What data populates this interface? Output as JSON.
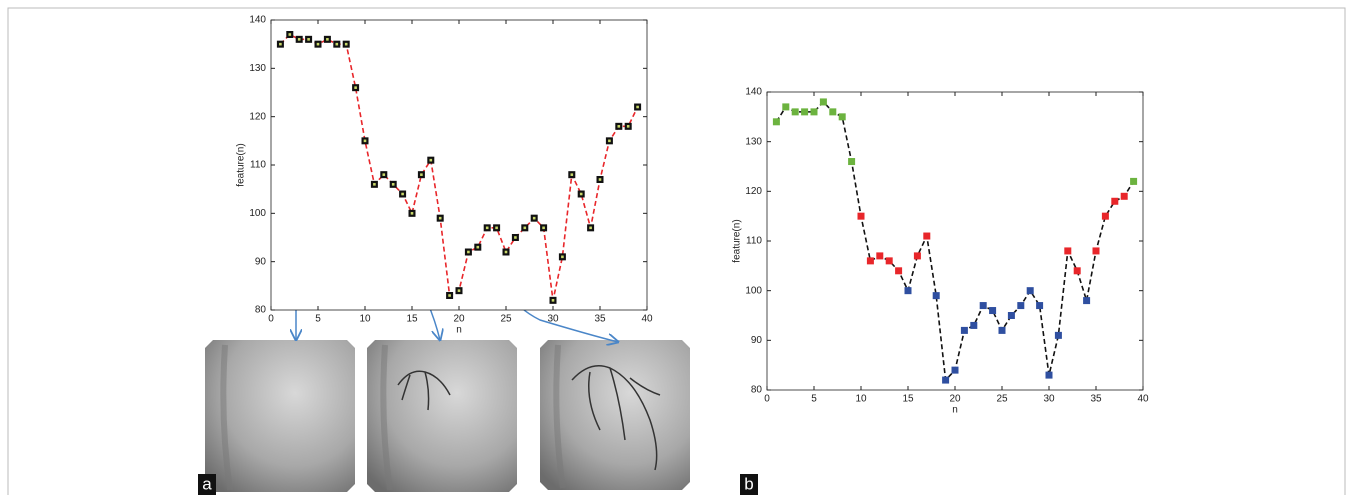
{
  "charts": [
    {
      "chart_data": {
        "type": "line",
        "panel_label": "a",
        "xlabel": "n",
        "ylabel": "feature(n)",
        "x": [
          1,
          2,
          3,
          4,
          5,
          6,
          7,
          8,
          9,
          10,
          11,
          12,
          13,
          14,
          15,
          16,
          17,
          18,
          19,
          20,
          21,
          22,
          23,
          24,
          25,
          26,
          27,
          28,
          29,
          30,
          31,
          32,
          33,
          34,
          35,
          36,
          37,
          38,
          39
        ],
        "series": [
          {
            "color": "#e8262a",
            "marker_color": "#111111",
            "marker_center_color": "#c8d86a",
            "values": [
              135,
              137,
              136,
              136,
              135,
              136,
              135,
              135,
              126,
              115,
              106,
              108,
              106,
              104,
              100,
              108,
              111,
              99,
              83,
              84,
              92,
              93,
              97,
              97,
              92,
              95,
              97,
              99,
              97,
              82,
              91,
              108,
              104,
              97,
              107,
              115,
              118,
              118,
              122
            ]
          }
        ],
        "xlim": [
          0,
          40
        ],
        "ylim": [
          80,
          140
        ],
        "xticks": [
          0,
          5,
          10,
          15,
          20,
          25,
          30,
          35,
          40
        ],
        "yticks": [
          80,
          90,
          100,
          110,
          120,
          130,
          140
        ]
      }
    },
    {
      "chart_data": {
        "type": "line",
        "panel_label": "b",
        "xlabel": "n",
        "ylabel": "feature(n)",
        "x": [
          1,
          2,
          3,
          4,
          5,
          6,
          7,
          8,
          9,
          10,
          11,
          12,
          13,
          14,
          15,
          16,
          17,
          18,
          19,
          20,
          21,
          22,
          23,
          24,
          25,
          26,
          27,
          28,
          29,
          30,
          31,
          32,
          33,
          34,
          35,
          36,
          37,
          38,
          39
        ],
        "series": [
          {
            "color": "#111111",
            "marker_colors": [
              "#6cb33f",
              "#6cb33f",
              "#6cb33f",
              "#6cb33f",
              "#6cb33f",
              "#6cb33f",
              "#6cb33f",
              "#6cb33f",
              "#6cb33f",
              "#e8262a",
              "#e8262a",
              "#e8262a",
              "#e8262a",
              "#e8262a",
              "#2f4fa0",
              "#e8262a",
              "#e8262a",
              "#2f4fa0",
              "#2f4fa0",
              "#2f4fa0",
              "#2f4fa0",
              "#2f4fa0",
              "#2f4fa0",
              "#2f4fa0",
              "#2f4fa0",
              "#2f4fa0",
              "#2f4fa0",
              "#2f4fa0",
              "#2f4fa0",
              "#2f4fa0",
              "#2f4fa0",
              "#e8262a",
              "#e8262a",
              "#2f4fa0",
              "#e8262a",
              "#e8262a",
              "#e8262a",
              "#e8262a",
              "#6cb33f"
            ],
            "values": [
              134,
              137,
              136,
              136,
              136,
              138,
              136,
              135,
              126,
              115,
              106,
              107,
              106,
              104,
              100,
              107,
              111,
              99,
              82,
              84,
              92,
              93,
              97,
              96,
              92,
              95,
              97,
              100,
              97,
              83,
              91,
              108,
              104,
              98,
              108,
              115,
              118,
              119,
              122
            ]
          }
        ],
        "xlim": [
          0,
          40
        ],
        "ylim": [
          80,
          140
        ],
        "xticks": [
          0,
          5,
          10,
          15,
          20,
          25,
          30,
          35,
          40
        ],
        "yticks": [
          80,
          90,
          100,
          110,
          120,
          130,
          140
        ]
      }
    }
  ]
}
